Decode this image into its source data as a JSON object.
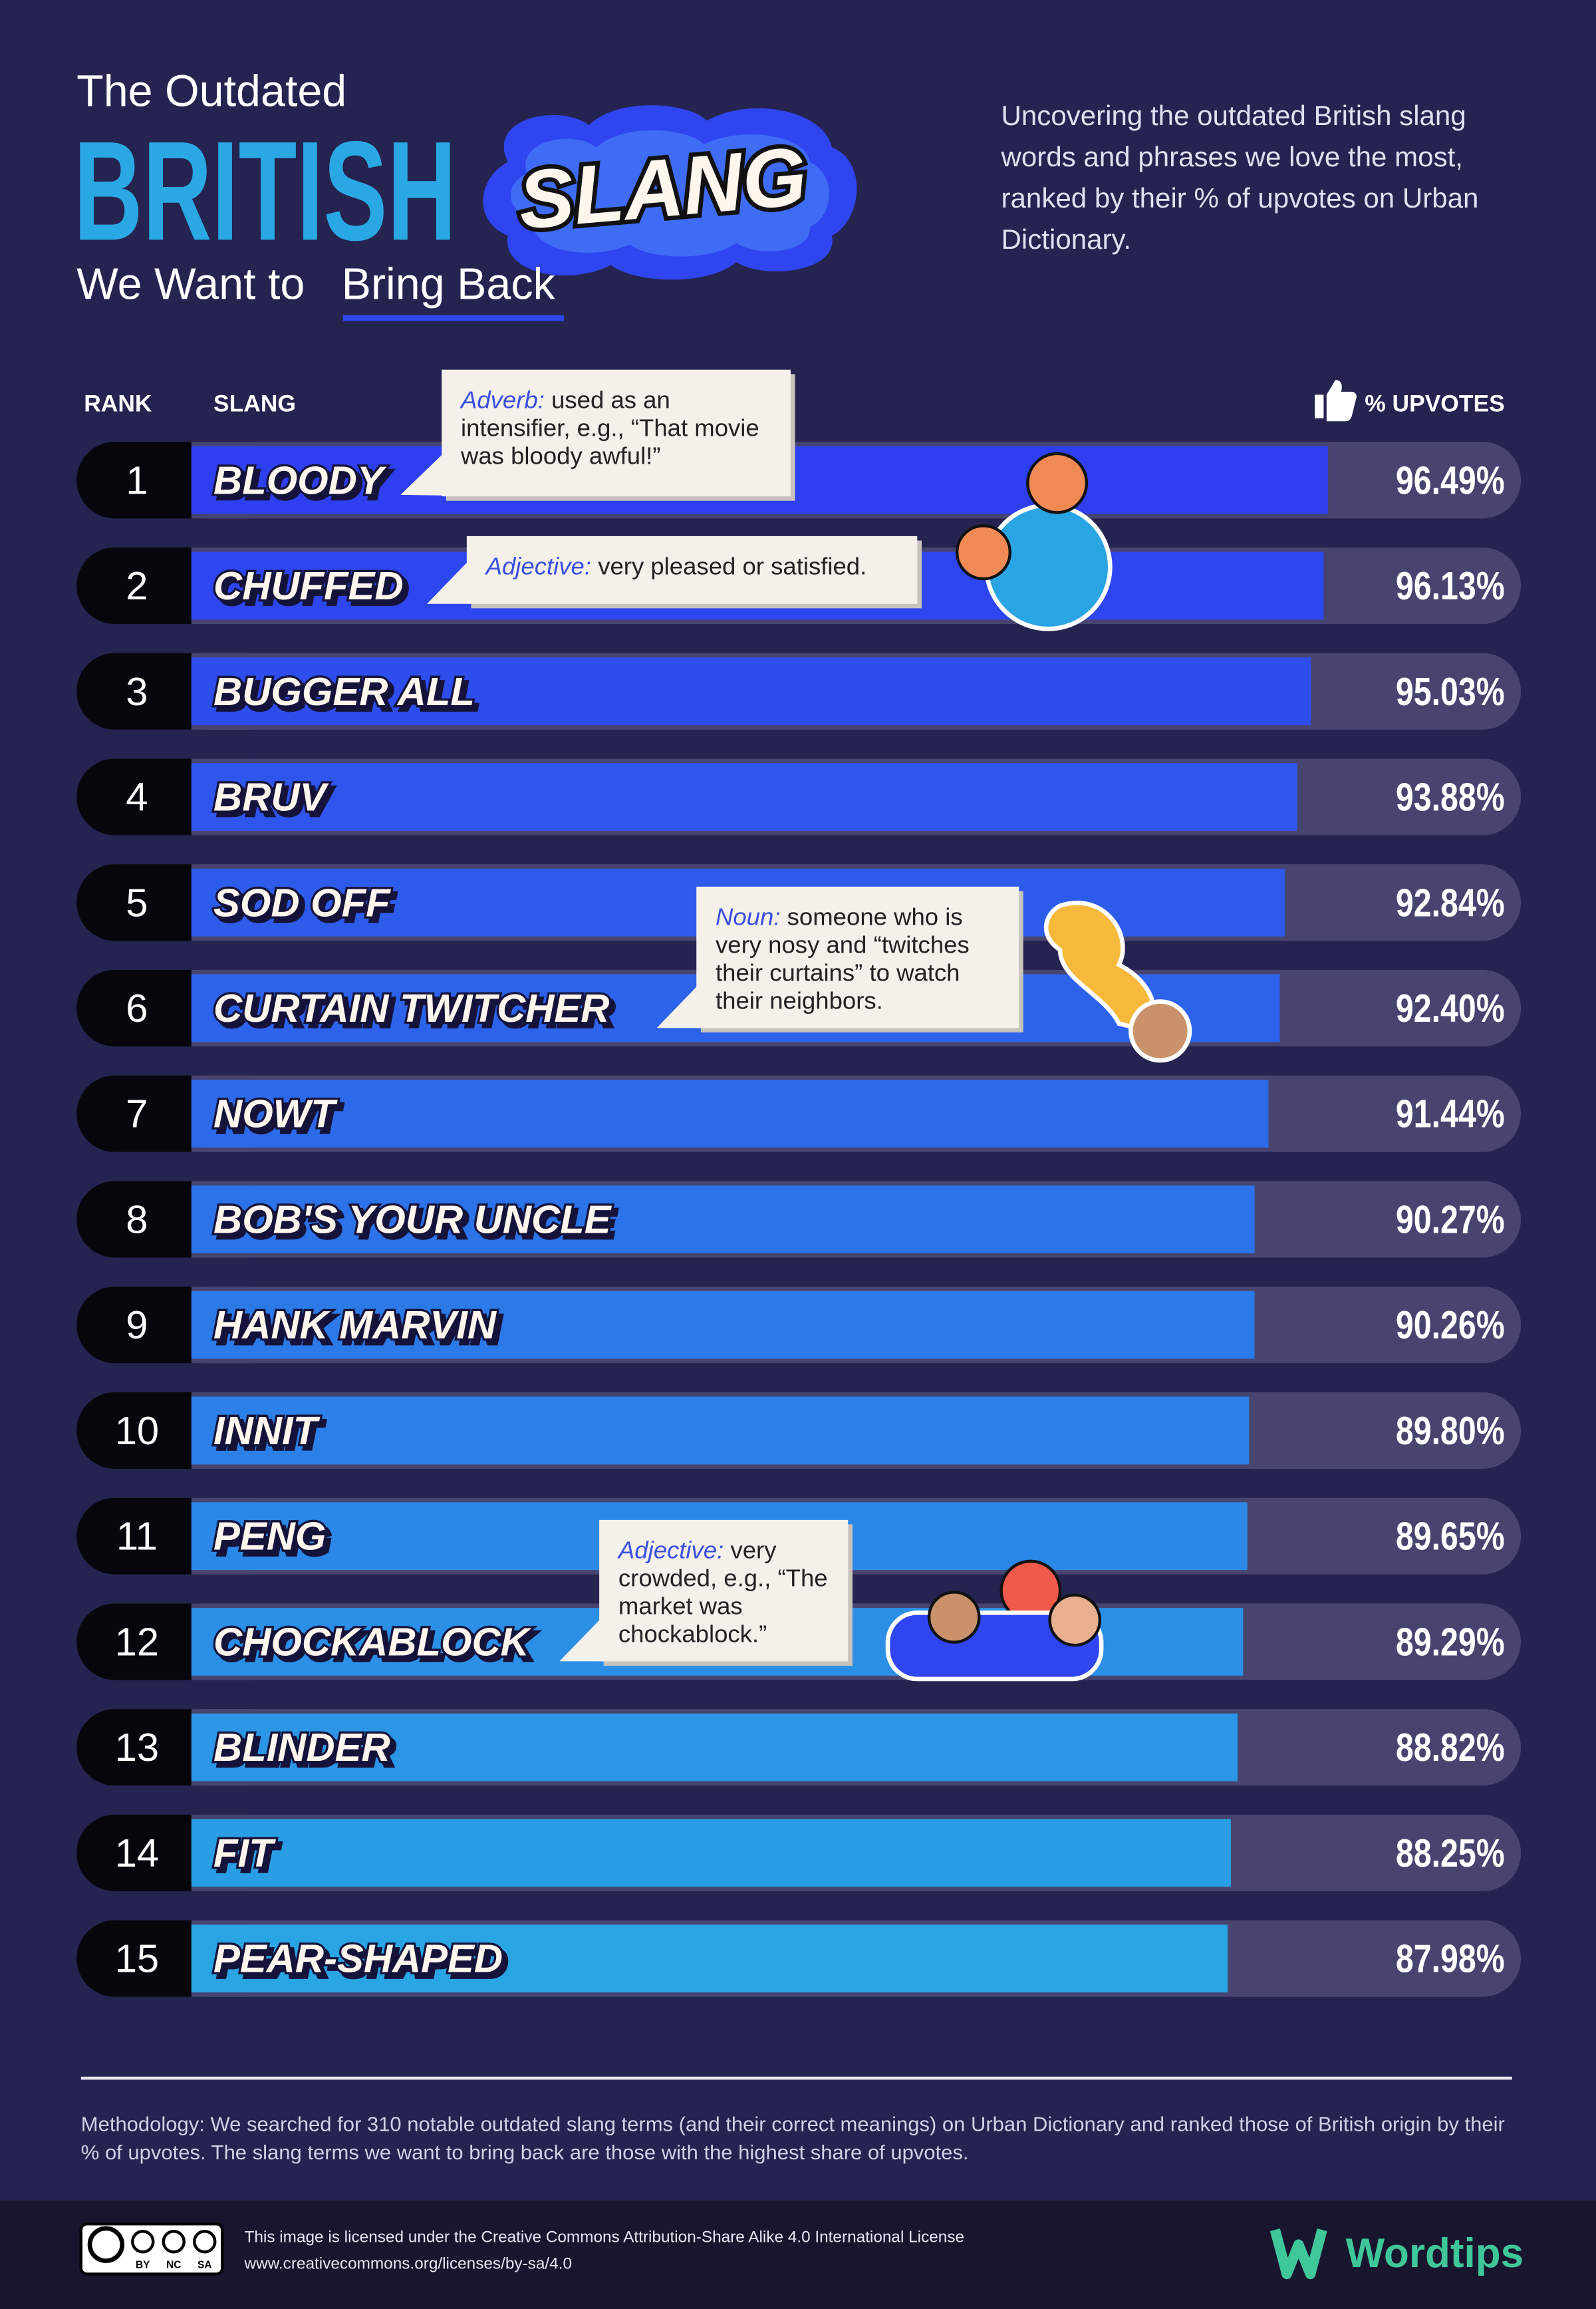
{
  "header": {
    "title_line1": "The Outdated",
    "title_big": "BRITISH",
    "title_badge": "SLANG",
    "title_line3_a": "We Want to",
    "title_line3_b": "Bring Back",
    "description": "Uncovering the outdated British slang words and phrases we love the most, ranked by their % of upvotes on Urban Dictionary."
  },
  "chart_data": {
    "type": "bar",
    "orientation": "horizontal",
    "rank_header": "RANK",
    "label_header": "SLANG",
    "value_header": "% UPVOTES",
    "ranks": [
      1,
      2,
      3,
      4,
      5,
      6,
      7,
      8,
      9,
      10,
      11,
      12,
      13,
      14,
      15
    ],
    "categories": [
      "BLOODY",
      "CHUFFED",
      "BUGGER ALL",
      "BRUV",
      "SOD OFF",
      "CURTAIN TWITCHER",
      "NOWT",
      "BOB'S YOUR UNCLE",
      "HANK MARVIN",
      "INNIT",
      "PENG",
      "CHOCKABLOCK",
      "BLINDER",
      "FIT",
      "PEAR-SHAPED"
    ],
    "values": [
      96.49,
      96.13,
      95.03,
      93.88,
      92.84,
      92.4,
      91.44,
      90.27,
      90.26,
      89.8,
      89.65,
      89.29,
      88.82,
      88.25,
      87.98
    ],
    "value_labels": [
      "96.49%",
      "96.13%",
      "95.03%",
      "93.88%",
      "92.84%",
      "92.40%",
      "91.44%",
      "90.27%",
      "90.26%",
      "89.80%",
      "89.65%",
      "89.29%",
      "88.82%",
      "88.25%",
      "87.98%"
    ],
    "colors": [
      "#2e3ff0",
      "#2e46ef",
      "#2e4ded",
      "#2e55ec",
      "#2d5ceb",
      "#2d63ea",
      "#2d6ae9",
      "#2c72e8",
      "#2c79e8",
      "#2c80e7",
      "#2b88e6",
      "#2b8fe6",
      "#2b96e5",
      "#2a9ee5",
      "#2aa5e4"
    ],
    "xlim": [
      0,
      100
    ],
    "annotations": [
      {
        "label": "Adverb:",
        "text": "used as an intensifier, e.g., “That movie was bloody awful!”"
      },
      {
        "label": "Adjective:",
        "text": "very pleased or satisfied."
      },
      {
        "label": "Noun:",
        "text": "someone who is very nosy and “twitches their curtains” to watch their neighbors."
      },
      {
        "label": "Adjective:",
        "text": "very crowded, e.g., “The market was chockablock.”"
      }
    ]
  },
  "footer": {
    "methodology": "Methodology: We searched for 310 notable outdated slang terms (and their correct meanings) on Urban Dictionary and ranked those of British origin by their % of upvotes. The slang terms we want to bring back are those with the highest share of upvotes.",
    "license_line1": "This image is licensed under the Creative Commons Attribution-Share Alike 4.0 International License",
    "license_line2": "www.creativecommons.org/licenses/by-sa/4.0",
    "badges": [
      "BY",
      "NC",
      "SA"
    ],
    "brand": "Wordtips"
  }
}
